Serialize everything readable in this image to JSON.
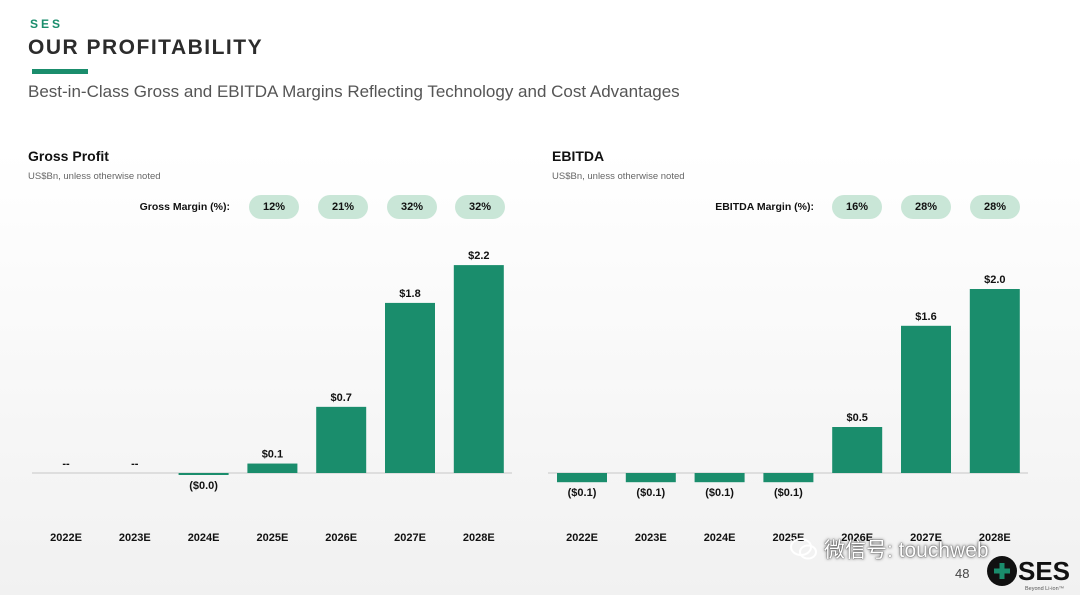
{
  "header": {
    "brand": "SES",
    "title": "OUR PROFITABILITY",
    "subtitle": "Best-in-Class Gross and EBITDA Margins Reflecting Technology and Cost Advantages"
  },
  "colors": {
    "accent": "#1a8d6c",
    "bar": "#1a8d6c",
    "pill": "#c9e6d7"
  },
  "panels": {
    "gross": {
      "title": "Gross Profit",
      "unit": "US$Bn, unless otherwise noted",
      "margin_label": "Gross Margin (%):",
      "margins": [
        "12%",
        "21%",
        "32%",
        "32%"
      ]
    },
    "ebitda": {
      "title": "EBITDA",
      "unit": "US$Bn, unless otherwise noted",
      "margin_label": "EBITDA Margin (%):",
      "margins": [
        "16%",
        "28%",
        "28%"
      ]
    }
  },
  "chart_data": [
    {
      "type": "bar",
      "title": "Gross Profit",
      "ylabel": "US$Bn",
      "categories": [
        "2022E",
        "2023E",
        "2024E",
        "2025E",
        "2026E",
        "2027E",
        "2028E"
      ],
      "values": [
        0,
        0,
        -0.01,
        0.1,
        0.7,
        1.8,
        2.2
      ],
      "labels": [
        "--",
        "--",
        "($0.0)",
        "$0.1",
        "$0.7",
        "$1.8",
        "$2.2"
      ],
      "ylim": [
        -0.2,
        2.2
      ]
    },
    {
      "type": "bar",
      "title": "EBITDA",
      "ylabel": "US$Bn",
      "categories": [
        "2022E",
        "2023E",
        "2024E",
        "2025E",
        "2026E",
        "2027E",
        "2028E"
      ],
      "values": [
        -0.1,
        -0.1,
        -0.1,
        -0.1,
        0.5,
        1.6,
        2.0
      ],
      "labels": [
        "($0.1)",
        "($0.1)",
        "($0.1)",
        "($0.1)",
        "$0.5",
        "$1.6",
        "$2.0"
      ],
      "ylim": [
        -0.2,
        2.0
      ]
    }
  ],
  "watermark": "微信号: touchweb",
  "footer": {
    "page_number": "48",
    "logo_text": "SES",
    "logo_tagline": "Beyond Li-ion™"
  }
}
